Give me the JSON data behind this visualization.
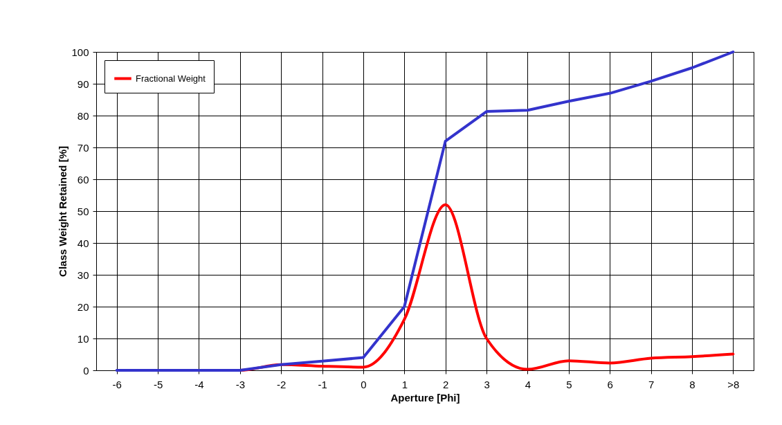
{
  "chart_data": {
    "type": "line",
    "xlabel": "Aperture [Phi]",
    "ylabel": "Class Weight Retained [%]",
    "categories": [
      "-6",
      "-5",
      "-4",
      "-3",
      "-2",
      "-1",
      "0",
      "1",
      "2",
      "3",
      "4",
      "5",
      "6",
      "7",
      "8",
      ">8"
    ],
    "series": [
      {
        "name": "Fractional Weight",
        "color": "#ff0000",
        "values": [
          null,
          null,
          0,
          0,
          1.8,
          1.3,
          1,
          16,
          52,
          10,
          0.3,
          3,
          2.3,
          3.8,
          4.3,
          5.1
        ]
      },
      {
        "color": "#3333cc",
        "values": [
          0,
          0,
          0,
          0,
          1.8,
          2.9,
          4,
          20,
          72,
          81.3,
          81.7,
          84.5,
          87,
          90.8,
          95,
          100
        ]
      }
    ],
    "ylim": [
      0,
      100
    ],
    "yticks": [
      0,
      10,
      20,
      30,
      40,
      50,
      60,
      70,
      80,
      90,
      100
    ],
    "grid": true,
    "legend": "top left",
    "line_style": "solid",
    "marker": "none"
  }
}
